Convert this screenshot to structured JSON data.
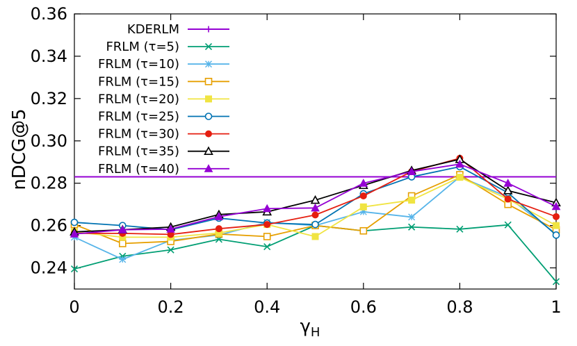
{
  "chart_data": {
    "type": "line",
    "title": "",
    "xlabel": "γ",
    "xlabel_sub": "H",
    "ylabel": "nDCG@5",
    "xlim": [
      0,
      1
    ],
    "ylim": [
      0.23,
      0.36
    ],
    "xticks": [
      0,
      0.2,
      0.4,
      0.6,
      0.8,
      1
    ],
    "xtick_labels": [
      "0",
      "0.2",
      "0.4",
      "0.6",
      "0.8",
      "1"
    ],
    "yticks": [
      0.24,
      0.26,
      0.28,
      0.3,
      0.32,
      0.34,
      0.36
    ],
    "ytick_labels": [
      "0.24",
      "0.26",
      "0.28",
      "0.30",
      "0.32",
      "0.34",
      "0.36"
    ],
    "legend_position": "top-left",
    "x": [
      0,
      0.1,
      0.2,
      0.3,
      0.4,
      0.5,
      0.6,
      0.7,
      0.8,
      0.9,
      1.0
    ],
    "series": [
      {
        "name": "KDERLM",
        "color": "#9400d3",
        "marker": "plus",
        "constant": 0.283
      },
      {
        "name": "FRLM (τ=5)",
        "color": "#009e73",
        "marker": "x",
        "values": [
          0.2395,
          0.2455,
          0.2485,
          0.2535,
          0.25,
          0.26,
          0.2575,
          0.2593,
          0.2583,
          0.2603,
          0.2335
        ]
      },
      {
        "name": "FRLM (τ=10)",
        "color": "#56b4e9",
        "marker": "star",
        "values": [
          0.2545,
          0.244,
          0.253,
          0.2555,
          0.2615,
          0.26,
          0.2665,
          0.264,
          0.283,
          0.2735,
          0.256
        ]
      },
      {
        "name": "FRLM (τ=15)",
        "color": "#e69f00",
        "marker": "square-open",
        "values": [
          0.2605,
          0.2515,
          0.2525,
          0.256,
          0.2548,
          0.26,
          0.2575,
          0.274,
          0.284,
          0.27,
          0.258
        ]
      },
      {
        "name": "FRLM (τ=20)",
        "color": "#f0e442",
        "marker": "square-filled",
        "values": [
          0.257,
          0.2545,
          0.2545,
          0.2565,
          0.2605,
          0.2548,
          0.2688,
          0.272,
          0.2828,
          0.2725,
          0.26
        ]
      },
      {
        "name": "FRLM (τ=25)",
        "color": "#0072b2",
        "marker": "circle-open",
        "values": [
          0.2615,
          0.26,
          0.258,
          0.2635,
          0.2612,
          0.2605,
          0.275,
          0.283,
          0.2878,
          0.2755,
          0.2555
        ]
      },
      {
        "name": "FRLM (τ=30)",
        "color": "#e51e10",
        "marker": "circle-filled",
        "values": [
          0.2563,
          0.2563,
          0.2558,
          0.2585,
          0.2605,
          0.265,
          0.274,
          0.2855,
          0.2918,
          0.2725,
          0.2642
        ]
      },
      {
        "name": "FRLM (τ=35)",
        "color": "#000000",
        "marker": "triangle-open",
        "values": [
          0.257,
          0.258,
          0.2593,
          0.2652,
          0.2665,
          0.272,
          0.279,
          0.286,
          0.2913,
          0.2765,
          0.2708
        ]
      },
      {
        "name": "FRLM (τ=40)",
        "color": "#9400d3",
        "marker": "triangle-filled",
        "values": [
          0.256,
          0.258,
          0.2583,
          0.2642,
          0.268,
          0.2683,
          0.28,
          0.2855,
          0.289,
          0.28,
          0.269
        ]
      }
    ]
  }
}
